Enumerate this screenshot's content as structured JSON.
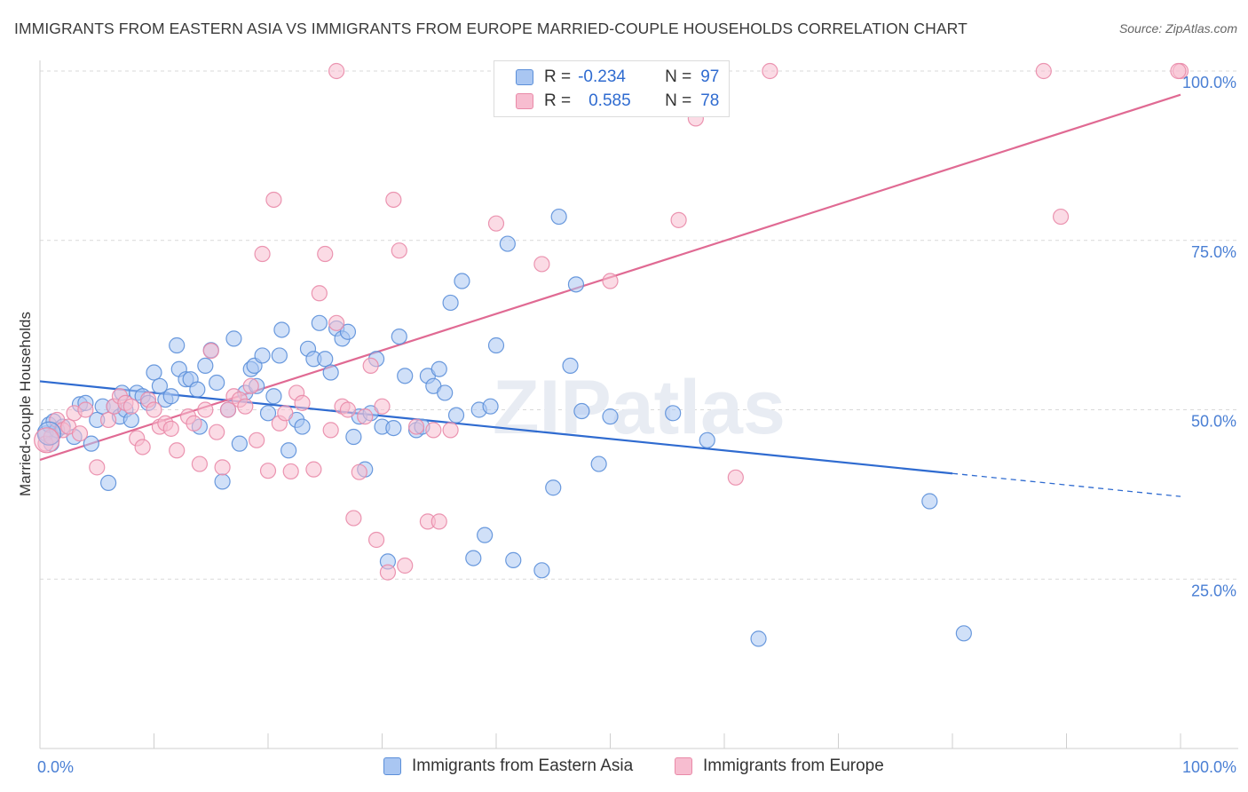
{
  "title": "IMMIGRANTS FROM EASTERN ASIA VS IMMIGRANTS FROM EUROPE MARRIED-COUPLE HOUSEHOLDS CORRELATION CHART",
  "source": "Source: ZipAtlas.com",
  "watermark": "ZIPatlas",
  "legend": {
    "rows": [
      {
        "r_label": "R =",
        "r_value": "-0.234",
        "n_label": "N =",
        "n_value": "97"
      },
      {
        "r_label": "R =",
        "r_value": "0.585",
        "n_label": "N =",
        "n_value": "78"
      }
    ]
  },
  "colors": {
    "blue_fill": "#a9c6f2",
    "blue_stroke": "#5b8fd9",
    "blue_line": "#2f6bd0",
    "pink_fill": "#f7bdd0",
    "pink_stroke": "#e98aa8",
    "pink_line": "#e06a93",
    "tick_text": "#4a7fd4",
    "grid": "#d9d9d9"
  },
  "chart_data": {
    "type": "scatter",
    "ylabel": "Married-couple Households",
    "xlim": [
      0,
      100
    ],
    "ylim": [
      0,
      103
    ],
    "x_tick_labels": [
      "0.0%",
      "100.0%"
    ],
    "y_ticks": [
      25,
      50,
      75,
      100
    ],
    "y_tick_labels": [
      "25.0%",
      "50.0%",
      "75.0%",
      "100.0%"
    ],
    "grid": true,
    "legend_position": "bottom",
    "series": [
      {
        "name": "Immigrants from Eastern Asia",
        "color": "#5b8fd9",
        "trend": {
          "x0": 0,
          "y0": 54.2,
          "x1": 80,
          "y1": 40.6,
          "dashed_to_x": 100,
          "dashed_to_y": 37.2
        },
        "points": [
          [
            0.5,
            46.5
          ],
          [
            0.8,
            47.8
          ],
          [
            1.0,
            45.0
          ],
          [
            1.2,
            48.3
          ],
          [
            1.5,
            47.0
          ],
          [
            2.0,
            47.5
          ],
          [
            3.0,
            46.0
          ],
          [
            3.5,
            50.8
          ],
          [
            4.0,
            51.0
          ],
          [
            4.5,
            45.0
          ],
          [
            5.0,
            48.5
          ],
          [
            5.5,
            50.5
          ],
          [
            6.0,
            39.2
          ],
          [
            6.5,
            50.5
          ],
          [
            7.0,
            49.0
          ],
          [
            7.2,
            52.5
          ],
          [
            7.5,
            50.0
          ],
          [
            8.0,
            48.5
          ],
          [
            8.5,
            52.5
          ],
          [
            9.0,
            52.0
          ],
          [
            9.5,
            51.0
          ],
          [
            10.0,
            55.5
          ],
          [
            10.5,
            53.5
          ],
          [
            11.0,
            51.5
          ],
          [
            11.5,
            52.0
          ],
          [
            12.0,
            59.5
          ],
          [
            12.2,
            56.0
          ],
          [
            12.8,
            54.5
          ],
          [
            13.2,
            54.5
          ],
          [
            13.8,
            53.0
          ],
          [
            14.0,
            47.5
          ],
          [
            14.5,
            56.5
          ],
          [
            15.0,
            58.8
          ],
          [
            15.5,
            54.0
          ],
          [
            16.0,
            39.4
          ],
          [
            16.5,
            50.0
          ],
          [
            17.0,
            60.5
          ],
          [
            17.5,
            45.0
          ],
          [
            18.0,
            52.5
          ],
          [
            18.5,
            56.0
          ],
          [
            18.8,
            56.5
          ],
          [
            19.0,
            53.5
          ],
          [
            19.5,
            58.0
          ],
          [
            20.0,
            49.5
          ],
          [
            20.5,
            52.0
          ],
          [
            21.0,
            58.0
          ],
          [
            21.2,
            61.8
          ],
          [
            21.8,
            44.0
          ],
          [
            22.5,
            48.5
          ],
          [
            23.0,
            47.5
          ],
          [
            23.5,
            59.0
          ],
          [
            24.0,
            57.5
          ],
          [
            24.5,
            62.8
          ],
          [
            25.0,
            57.5
          ],
          [
            25.5,
            55.5
          ],
          [
            26.0,
            62.0
          ],
          [
            26.5,
            60.5
          ],
          [
            27.0,
            61.5
          ],
          [
            27.5,
            46.0
          ],
          [
            28.0,
            49.0
          ],
          [
            28.5,
            41.2
          ],
          [
            29.0,
            49.5
          ],
          [
            29.5,
            57.5
          ],
          [
            30.0,
            47.5
          ],
          [
            30.5,
            27.6
          ],
          [
            31.0,
            47.3
          ],
          [
            31.5,
            60.8
          ],
          [
            32.0,
            55.0
          ],
          [
            33.0,
            47.0
          ],
          [
            33.5,
            47.5
          ],
          [
            34.0,
            55.0
          ],
          [
            34.5,
            53.5
          ],
          [
            35.0,
            56.0
          ],
          [
            35.5,
            52.5
          ],
          [
            36.0,
            65.8
          ],
          [
            36.5,
            49.2
          ],
          [
            37.0,
            69.0
          ],
          [
            38.0,
            28.1
          ],
          [
            38.5,
            50.0
          ],
          [
            39.0,
            31.5
          ],
          [
            39.5,
            50.5
          ],
          [
            40.0,
            59.5
          ],
          [
            41.0,
            74.5
          ],
          [
            41.5,
            27.8
          ],
          [
            44.0,
            26.3
          ],
          [
            45.0,
            38.5
          ],
          [
            45.5,
            78.5
          ],
          [
            46.5,
            56.5
          ],
          [
            47.0,
            68.5
          ],
          [
            47.5,
            49.8
          ],
          [
            49.0,
            42.0
          ],
          [
            50.0,
            49.0
          ],
          [
            55.5,
            49.5
          ],
          [
            58.5,
            45.5
          ],
          [
            63.0,
            16.2
          ],
          [
            78.0,
            36.5
          ],
          [
            81.0,
            17.0
          ]
        ]
      },
      {
        "name": "Immigrants from Europe",
        "color": "#e98aa8",
        "trend": {
          "x0": 0,
          "y0": 42.6,
          "x1": 100,
          "y1": 96.5
        },
        "points": [
          [
            0.5,
            45.0
          ],
          [
            1.0,
            46.0
          ],
          [
            1.5,
            48.5
          ],
          [
            2.0,
            47.0
          ],
          [
            2.5,
            47.5
          ],
          [
            3.0,
            49.5
          ],
          [
            3.5,
            46.5
          ],
          [
            4.0,
            50.0
          ],
          [
            5.0,
            41.5
          ],
          [
            6.0,
            48.5
          ],
          [
            6.5,
            50.5
          ],
          [
            7.0,
            52.0
          ],
          [
            7.5,
            51.0
          ],
          [
            8.0,
            50.5
          ],
          [
            8.5,
            45.8
          ],
          [
            9.0,
            44.5
          ],
          [
            9.5,
            51.5
          ],
          [
            10.0,
            50.0
          ],
          [
            10.5,
            47.5
          ],
          [
            11.0,
            48.0
          ],
          [
            11.5,
            47.2
          ],
          [
            12.0,
            44.0
          ],
          [
            13.0,
            49.0
          ],
          [
            13.5,
            48.0
          ],
          [
            14.0,
            42.0
          ],
          [
            14.5,
            50.0
          ],
          [
            15.0,
            58.7
          ],
          [
            15.5,
            46.7
          ],
          [
            16.0,
            41.5
          ],
          [
            16.5,
            50.0
          ],
          [
            17.0,
            52.0
          ],
          [
            17.5,
            51.5
          ],
          [
            18.0,
            50.5
          ],
          [
            18.5,
            53.5
          ],
          [
            19.0,
            45.5
          ],
          [
            19.5,
            73.0
          ],
          [
            20.0,
            41.0
          ],
          [
            20.5,
            81.0
          ],
          [
            21.0,
            48.0
          ],
          [
            21.5,
            49.5
          ],
          [
            22.0,
            40.9
          ],
          [
            22.5,
            52.5
          ],
          [
            23.0,
            51.0
          ],
          [
            24.0,
            41.2
          ],
          [
            24.5,
            67.2
          ],
          [
            25.0,
            73.0
          ],
          [
            25.5,
            47.0
          ],
          [
            26.0,
            62.8
          ],
          [
            26.5,
            50.5
          ],
          [
            27.0,
            50.0
          ],
          [
            27.5,
            34.0
          ],
          [
            28.0,
            40.8
          ],
          [
            28.5,
            49.0
          ],
          [
            29.0,
            56.5
          ],
          [
            29.5,
            30.8
          ],
          [
            30.0,
            50.5
          ],
          [
            30.5,
            26.0
          ],
          [
            31.0,
            81.0
          ],
          [
            31.5,
            73.5
          ],
          [
            32.0,
            27.0
          ],
          [
            33.0,
            47.5
          ],
          [
            34.0,
            33.5
          ],
          [
            34.5,
            47.0
          ],
          [
            35.0,
            33.5
          ],
          [
            36.0,
            47.0
          ],
          [
            40.0,
            77.5
          ],
          [
            44.0,
            71.5
          ],
          [
            50.0,
            69.0
          ],
          [
            56.0,
            78.0
          ],
          [
            61.0,
            40.0
          ],
          [
            64.0,
            100.0
          ],
          [
            49.0,
            100.0
          ],
          [
            26.0,
            100.0
          ],
          [
            57.5,
            93.0
          ],
          [
            88.0,
            100.0
          ],
          [
            89.5,
            78.5
          ],
          [
            100.0,
            100.0
          ],
          [
            99.8,
            100.0
          ]
        ]
      }
    ]
  }
}
